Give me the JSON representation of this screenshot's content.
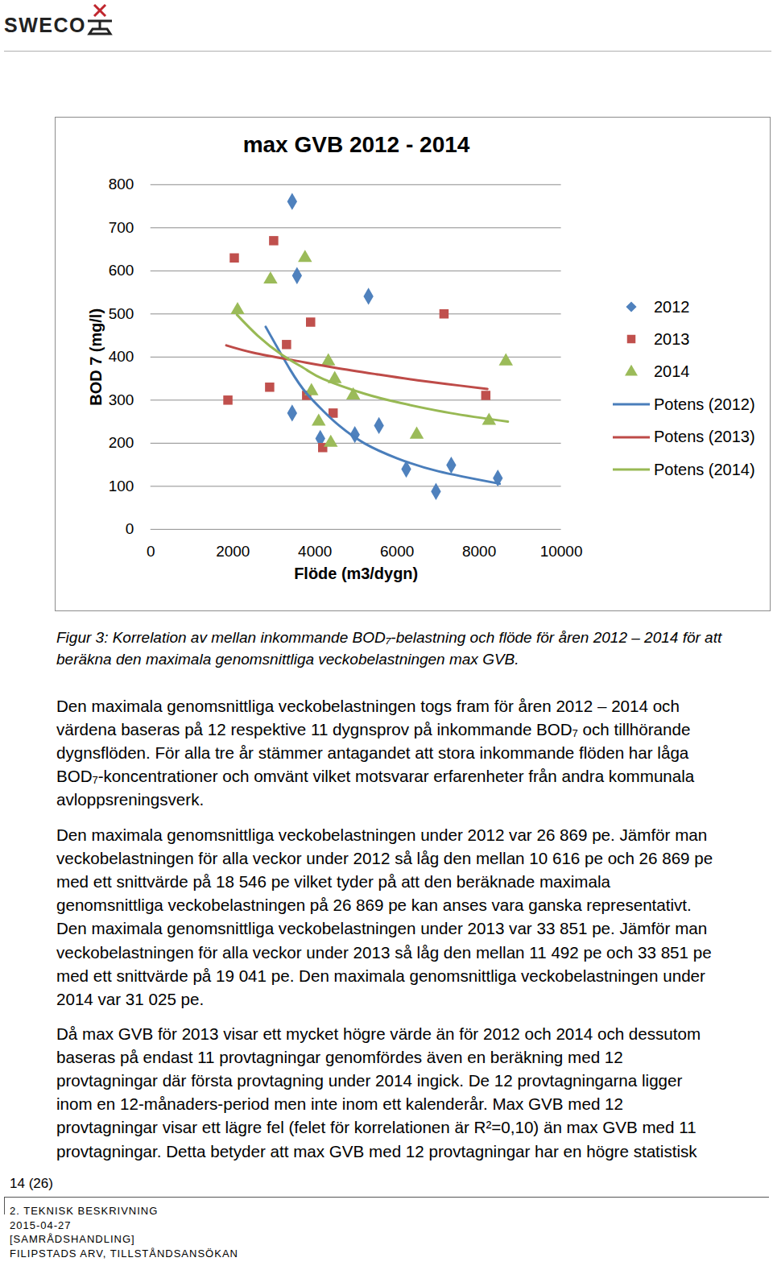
{
  "header": {
    "logo": "SWECO"
  },
  "chart_data": {
    "type": "scatter",
    "title": "max GVB 2012 - 2014",
    "xlabel": "Flöde (m3/dygn)",
    "ylabel": "BOD 7 (mg/l)",
    "xlim": [
      0,
      10000
    ],
    "xticks": [
      0,
      2000,
      4000,
      6000,
      8000,
      10000
    ],
    "ylim": [
      0,
      800
    ],
    "yticks": [
      0,
      100,
      200,
      300,
      400,
      500,
      600,
      700,
      800
    ],
    "grid": "y",
    "legend": "right",
    "series": [
      {
        "name": "2012",
        "type": "scatter",
        "marker": "diamond",
        "color": "#4f81bd",
        "x": [
          3444,
          3562,
          5303,
          3444,
          4129,
          4971,
          5558,
          6223,
          6947,
          7319,
          8454
        ],
        "values": [
          761,
          589,
          541,
          270,
          211,
          220,
          241,
          140,
          88,
          149,
          119
        ]
      },
      {
        "name": "2013",
        "type": "scatter",
        "marker": "square",
        "color": "#c0504d",
        "x": [
          2035,
          2994,
          3894,
          3307,
          7143,
          1879,
          2896,
          3797,
          4442,
          4188,
          8161
        ],
        "values": [
          630,
          670,
          481,
          429,
          500,
          300,
          330,
          311,
          270,
          190,
          311
        ]
      },
      {
        "name": "2014",
        "type": "scatter",
        "marker": "triangle",
        "color": "#9bbb59",
        "x": [
          2114,
          2916,
          3757,
          4325,
          4481,
          3914,
          4932,
          4090,
          4384,
          6478,
          8239,
          8650
        ],
        "values": [
          509,
          580,
          630,
          390,
          349,
          321,
          311,
          250,
          201,
          220,
          252,
          390
        ]
      },
      {
        "name": "Potens (2012)",
        "type": "line",
        "line_style": "solid",
        "color": "#4a7ebb",
        "x": [
          2800,
          3400,
          3800,
          4200,
          4600,
          5200,
          6000,
          7000,
          8500
        ],
        "values": [
          470,
          370,
          315,
          275,
          240,
          200,
          165,
          135,
          106
        ]
      },
      {
        "name": "Potens (2013)",
        "type": "line",
        "line_style": "solid",
        "color": "#be4b48",
        "x": [
          1840,
          2500,
          3500,
          4500,
          5500,
          6500,
          7500,
          8200
        ],
        "values": [
          427,
          410,
          392,
          375,
          360,
          346,
          334,
          326
        ]
      },
      {
        "name": "Potens (2014)",
        "type": "line",
        "line_style": "solid",
        "color": "#98b954",
        "x": [
          2100,
          2600,
          3200,
          3800,
          4200,
          5200,
          6100,
          7300,
          8700
        ],
        "values": [
          498,
          450,
          405,
          370,
          349,
          315,
          293,
          270,
          250
        ]
      }
    ]
  },
  "caption": [
    "Figur 3: Korrelation av mellan inkommande BOD₇-belastning och flöde för åren 2012 – 2014 för att",
    "beräkna den maximala genomsnittliga veckobelastningen max GVB."
  ],
  "paragraphs": [
    [
      "Den maximala genomsnittliga veckobelastningen togs fram för åren 2012 – 2014 och",
      "värdena baseras på 12 respektive 11 dygnsprov på inkommande BOD₇ och tillhörande",
      "dygnsflöden. För alla tre år stämmer antagandet att stora inkommande flöden har låga",
      "BOD₇-koncentrationer och omvänt vilket motsvarar erfarenheter från andra kommunala",
      "avloppsreningsverk."
    ],
    [
      "Den maximala genomsnittliga veckobelastningen under 2012 var 26 869 pe. Jämför man",
      "veckobelastningen för alla veckor under 2012 så låg den mellan 10 616 pe och 26 869 pe",
      "med ett snittvärde på 18 546 pe vilket tyder på att den beräknade maximala",
      "genomsnittliga veckobelastningen på 26 869 pe kan anses vara ganska representativt.",
      "Den maximala genomsnittliga veckobelastningen under 2013 var 33 851 pe. Jämför man",
      "veckobelastningen för alla veckor under 2013 så låg den mellan 11 492 pe och 33 851 pe",
      "med ett snittvärde på 19 041 pe. Den maximala genomsnittliga veckobelastningen under",
      "2014 var 31 025 pe."
    ],
    [
      "Då max GVB för 2013 visar ett mycket högre värde än för 2012 och 2014 och dessutom",
      "baseras på endast 11 provtagningar genomfördes även en beräkning med 12",
      "provtagningar där första provtagning under 2014 ingick. De 12 provtagningarna ligger",
      "inom en 12-månaders-period men inte inom ett kalenderår. Max GVB med 12",
      "provtagningar visar ett lägre fel (felet för korrelationen är R²=0,10) än max GVB med 11",
      "provtagningar. Detta betyder att max GVB med 12 provtagningar har en högre statistisk"
    ]
  ],
  "footer": {
    "page": "14 (26)",
    "lines": [
      "2. TEKNISK BESKRIVNING",
      "2015-04-27",
      "[SAMRÅDSHANDLING]",
      "FILIPSTADS ARV, TILLSTÅNDSANSÖKAN"
    ]
  }
}
